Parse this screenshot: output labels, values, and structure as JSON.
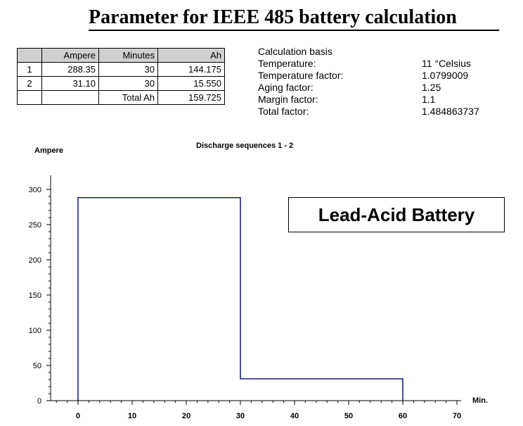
{
  "title": "Parameter for IEEE 485 battery calculation",
  "table": {
    "headers": [
      "",
      "Ampere",
      "Minutes",
      "Ah"
    ],
    "rows": [
      [
        "1",
        "288.35",
        "30",
        "144.175"
      ],
      [
        "2",
        "31.10",
        "30",
        "15.550"
      ],
      [
        "",
        "",
        "Total Ah",
        "159.725"
      ]
    ]
  },
  "basis": {
    "heading": "Calculation basis",
    "items": [
      {
        "label": "Temperature:",
        "value": "11 °Celsius"
      },
      {
        "label": "Temperature factor:",
        "value": "1.0799009"
      },
      {
        "label": "Aging factor:",
        "value": "1.25"
      },
      {
        "label": "Margin factor:",
        "value": "1.1"
      },
      {
        "label": "Total factor:",
        "value": "1.484863737"
      }
    ]
  },
  "chart_data": {
    "type": "line",
    "title": "Discharge sequences 1 - 2",
    "xlabel": "Min.",
    "ylabel": "Ampere",
    "xlim": [
      -5,
      72
    ],
    "ylim": [
      0,
      305
    ],
    "xticks": [
      0,
      10,
      20,
      30,
      40,
      50,
      60,
      70
    ],
    "yticks": [
      0,
      50,
      100,
      150,
      200,
      250,
      300
    ],
    "series": [
      {
        "x": [
          0,
          0,
          30,
          30,
          60,
          60
        ],
        "y": [
          0,
          288.35,
          288.35,
          31.1,
          31.1,
          0
        ],
        "color": "#00008b"
      }
    ],
    "annotation": "Lead-Acid Battery"
  }
}
